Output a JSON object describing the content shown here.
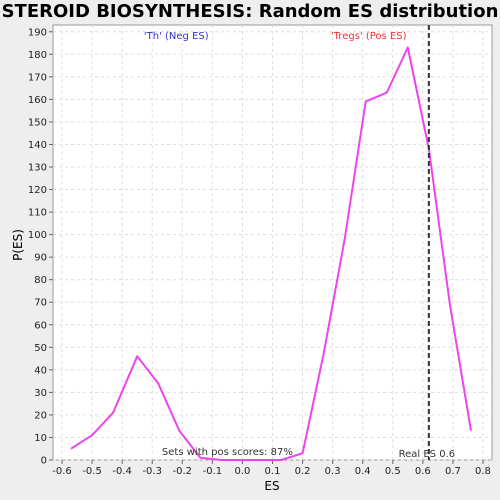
{
  "chart_data": {
    "type": "line",
    "title": "STEROID BIOSYNTHESIS: Random ES distribution",
    "xlabel": "ES",
    "ylabel": "P(ES)",
    "xlim": [
      -0.63,
      0.83
    ],
    "ylim": [
      0,
      193
    ],
    "xticks": [
      -0.6,
      -0.5,
      -0.4,
      -0.3,
      -0.2,
      -0.1,
      0.0,
      0.1,
      0.2,
      0.3,
      0.4,
      0.5,
      0.6,
      0.7,
      0.8
    ],
    "xtick_labels": [
      "-0.6",
      "-0.5",
      "-0.4",
      "-0.3",
      "-0.2",
      "-0.1",
      "0.0",
      "0.1",
      "0.2",
      "0.3",
      "0.4",
      "0.5",
      "0.6",
      "0.7",
      "0.8"
    ],
    "yticks": [
      0,
      10,
      20,
      30,
      40,
      50,
      60,
      70,
      80,
      90,
      100,
      110,
      120,
      130,
      140,
      150,
      160,
      170,
      180,
      190
    ],
    "grid": true,
    "series": [
      {
        "color": "#ee44ee",
        "x": [
          -0.57,
          -0.5,
          -0.43,
          -0.35,
          -0.28,
          -0.21,
          -0.14,
          -0.07,
          0.0,
          0.07,
          0.13,
          0.2,
          0.27,
          0.34,
          0.41,
          0.48,
          0.55,
          0.62,
          0.69,
          0.76
        ],
        "y": [
          5,
          11,
          21,
          46,
          34,
          13,
          1,
          0,
          0,
          0,
          0,
          3,
          47,
          98,
          159,
          163,
          183,
          138,
          69,
          13
        ]
      }
    ],
    "real_es": {
      "x": 0.62,
      "label": "Real ES 0.6",
      "color": "#333333"
    },
    "annotations": {
      "neg": {
        "text": "'Th' (Neg ES)",
        "color": "#3333cc",
        "x": -0.22
      },
      "pos": {
        "text": "'Tregs' (Pos ES)",
        "color": "#ee3333",
        "x": 0.42
      },
      "pos_scores": {
        "text": "Sets with pos scores: 87%",
        "color": "#333333",
        "x": -0.05
      }
    }
  }
}
